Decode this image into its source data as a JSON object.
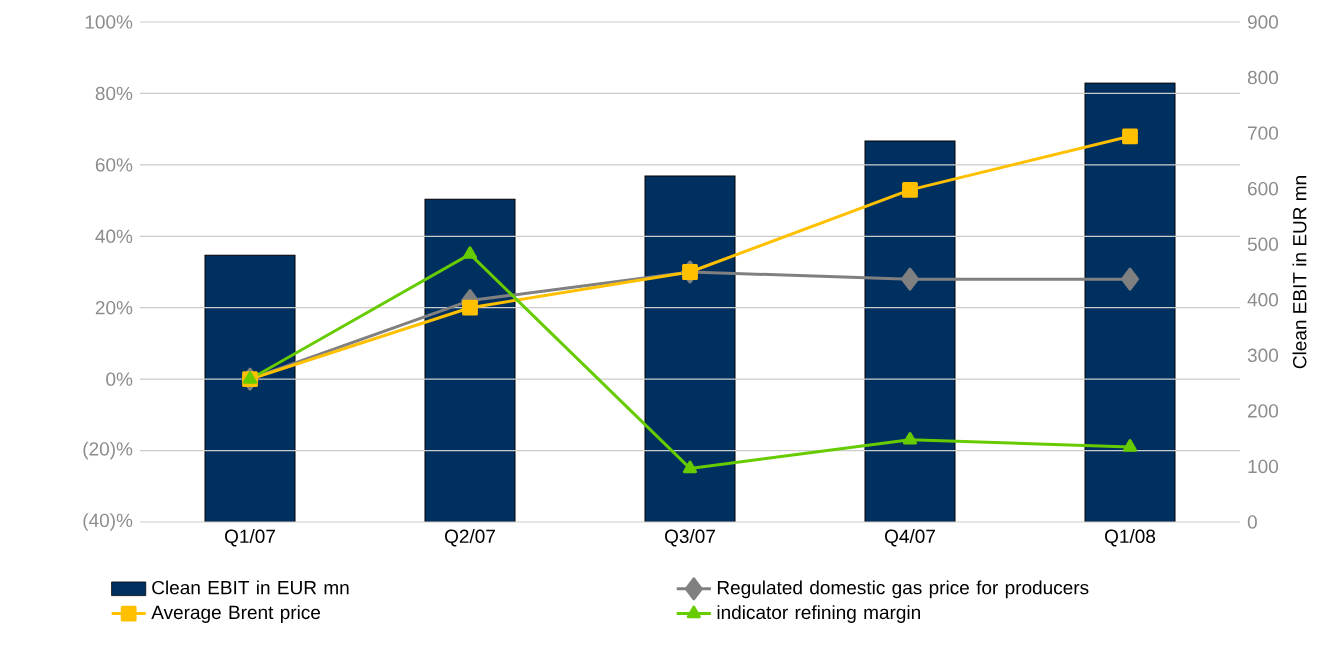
{
  "chart_data": {
    "type": "line",
    "categories": [
      "Q1/07",
      "Q2/07",
      "Q3/07",
      "Q4/07",
      "Q1/08"
    ],
    "series": [
      {
        "name": "Clean EBIT in EUR mn",
        "type": "bar",
        "axis": "y2",
        "color": "#003060",
        "values": [
          480,
          581,
          623,
          686,
          790
        ]
      },
      {
        "name": "Regulated domestic gas price for producers",
        "color": "#808080",
        "marker": "diamond",
        "values": [
          0,
          22,
          30,
          28,
          28
        ]
      },
      {
        "name": "Average Brent price",
        "color": "#ffc000",
        "marker": "square",
        "values": [
          0,
          20,
          30,
          53,
          68
        ]
      },
      {
        "name": "indicator refining margin",
        "color": "#66cc00",
        "marker": "triangle",
        "values": [
          0,
          35,
          -25,
          -17,
          -19
        ]
      }
    ],
    "ylim": [
      -40,
      100
    ],
    "yticks": [
      {
        "value": -40,
        "label": "(40)%"
      },
      {
        "value": -20,
        "label": "(20)%"
      },
      {
        "value": 0,
        "label": "0%"
      },
      {
        "value": 20,
        "label": "20%"
      },
      {
        "value": 40,
        "label": "40%"
      },
      {
        "value": 60,
        "label": "60%"
      },
      {
        "value": 80,
        "label": "80%"
      },
      {
        "value": 100,
        "label": "100%"
      }
    ],
    "y2lim": [
      0,
      900
    ],
    "y2ticks": [
      0,
      100,
      200,
      300,
      400,
      500,
      600,
      700,
      800,
      900
    ],
    "y2label": "Clean EBIT in EUR mn",
    "grid": "y",
    "legend": "bottom"
  }
}
